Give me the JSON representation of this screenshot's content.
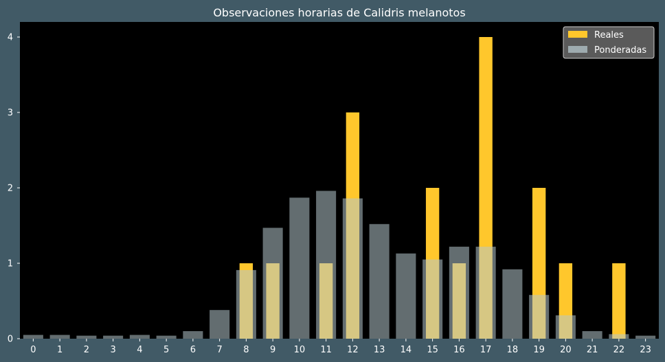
{
  "chart_data": {
    "type": "bar",
    "title": "Observaciones horarias de Calidris melanotos",
    "xlabel": "",
    "ylabel": "",
    "categories": [
      "0",
      "1",
      "2",
      "3",
      "4",
      "5",
      "6",
      "7",
      "8",
      "9",
      "10",
      "11",
      "12",
      "13",
      "14",
      "15",
      "16",
      "17",
      "18",
      "19",
      "20",
      "21",
      "22",
      "23"
    ],
    "ylim": [
      0,
      4.2
    ],
    "yticks": [
      0,
      1,
      2,
      3,
      4
    ],
    "grid": false,
    "legend_position": "top-right",
    "series": [
      {
        "name": "Reales",
        "color": "#ffc72c",
        "values": [
          0,
          0,
          0,
          0,
          0,
          0,
          0,
          0,
          1,
          1,
          0,
          1,
          3,
          0,
          0,
          2,
          1,
          4,
          0,
          2,
          1,
          0,
          1,
          0
        ]
      },
      {
        "name": "Ponderadas",
        "color": "#b5c7cc",
        "opacity": 0.55,
        "values": [
          0.05,
          0.05,
          0.04,
          0.04,
          0.05,
          0.04,
          0.1,
          0.38,
          0.91,
          1.47,
          1.87,
          1.96,
          1.86,
          1.52,
          1.13,
          1.05,
          1.22,
          1.22,
          0.92,
          0.58,
          0.31,
          0.1,
          0.06,
          0.04
        ]
      }
    ]
  },
  "colors": {
    "figure_background": "#415a66",
    "plot_background": "#000000",
    "text": "#ffffff",
    "legend_background": "#5a5a5a",
    "legend_border": "#cccccc"
  }
}
